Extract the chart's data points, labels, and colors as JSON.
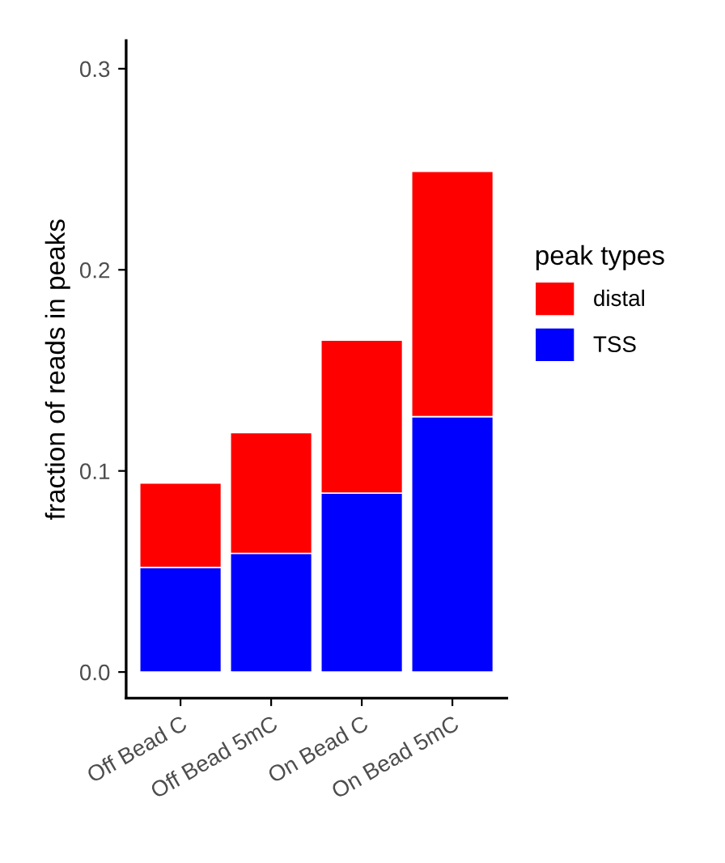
{
  "chart_data": {
    "type": "bar",
    "stacked": true,
    "ylabel": "fraction of reads in peaks",
    "legend_title": "peak types",
    "legend": "right",
    "categories": [
      "Off Bead C",
      "Off Bead 5mC",
      "On Bead C",
      "On Bead 5mC"
    ],
    "series": [
      {
        "name": "TSS",
        "color": "#0000ff",
        "values": [
          0.052,
          0.059,
          0.089,
          0.127
        ]
      },
      {
        "name": "distal",
        "color": "#ff0000",
        "values": [
          0.042,
          0.06,
          0.076,
          0.122
        ]
      }
    ],
    "ylim": [
      -0.013,
      0.314
    ],
    "yticks": [
      {
        "value": 0,
        "label": "0.0"
      },
      0.1,
      0.2,
      0.3
    ],
    "grid": false
  }
}
